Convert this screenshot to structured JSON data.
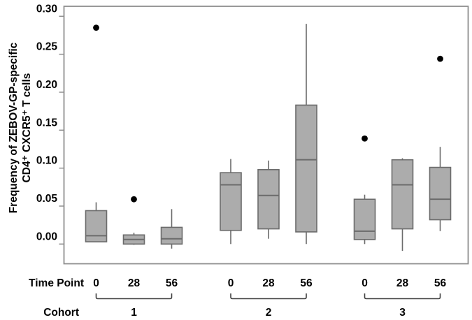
{
  "chart_data": {
    "type": "boxplot",
    "title": "",
    "ylabel": "Frequency of ZEBOV-GP-specific CD4⁺ CXCR5⁺ T cells",
    "ylabel_lines": [
      "Frequency of ZEBOV-GP-specific",
      "CD4⁺ CXCR5⁺ T cells"
    ],
    "ylim": [
      -0.026,
      0.313
    ],
    "yticks": [
      0.0,
      0.05,
      0.1,
      0.15,
      0.2,
      0.25,
      0.3
    ],
    "grid": false,
    "legend": "none",
    "row_labels": {
      "time_point": "Time Point",
      "cohort": "Cohort"
    },
    "groups": [
      {
        "cohort": "1",
        "boxes": [
          {
            "time": "0",
            "whisker_low": 0.003,
            "q1": 0.003,
            "median": 0.011,
            "q3": 0.044,
            "whisker_high": 0.055,
            "outliers": [
              0.285
            ]
          },
          {
            "time": "28",
            "whisker_low": -0.001,
            "q1": 0.0,
            "median": 0.006,
            "q3": 0.012,
            "whisker_high": 0.015,
            "outliers": [
              0.059
            ]
          },
          {
            "time": "56",
            "whisker_low": -0.006,
            "q1": 0.0,
            "median": 0.007,
            "q3": 0.022,
            "whisker_high": 0.046,
            "outliers": []
          }
        ]
      },
      {
        "cohort": "2",
        "boxes": [
          {
            "time": "0",
            "whisker_low": 0.0,
            "q1": 0.018,
            "median": 0.078,
            "q3": 0.094,
            "whisker_high": 0.112,
            "outliers": []
          },
          {
            "time": "28",
            "whisker_low": 0.007,
            "q1": 0.02,
            "median": 0.064,
            "q3": 0.098,
            "whisker_high": 0.11,
            "outliers": []
          },
          {
            "time": "56",
            "whisker_low": 0.0,
            "q1": 0.016,
            "median": 0.111,
            "q3": 0.183,
            "whisker_high": 0.29,
            "outliers": []
          }
        ]
      },
      {
        "cohort": "3",
        "boxes": [
          {
            "time": "0",
            "whisker_low": 0.0,
            "q1": 0.006,
            "median": 0.017,
            "q3": 0.059,
            "whisker_high": 0.065,
            "outliers": [
              0.139
            ]
          },
          {
            "time": "28",
            "whisker_low": -0.009,
            "q1": 0.02,
            "median": 0.078,
            "q3": 0.111,
            "whisker_high": 0.113,
            "outliers": []
          },
          {
            "time": "56",
            "whisker_low": 0.017,
            "q1": 0.032,
            "median": 0.059,
            "q3": 0.101,
            "whisker_high": 0.128,
            "outliers": [
              0.244
            ]
          }
        ]
      }
    ],
    "colors": {
      "box_fill": "#acacac",
      "box_border": "#6b6b6b",
      "outlier": "#000000",
      "frame": "#8e8e8e",
      "tick": "#8e8e8e",
      "text": "#000000",
      "bracket": "#404040",
      "background": "#ffffff"
    }
  }
}
